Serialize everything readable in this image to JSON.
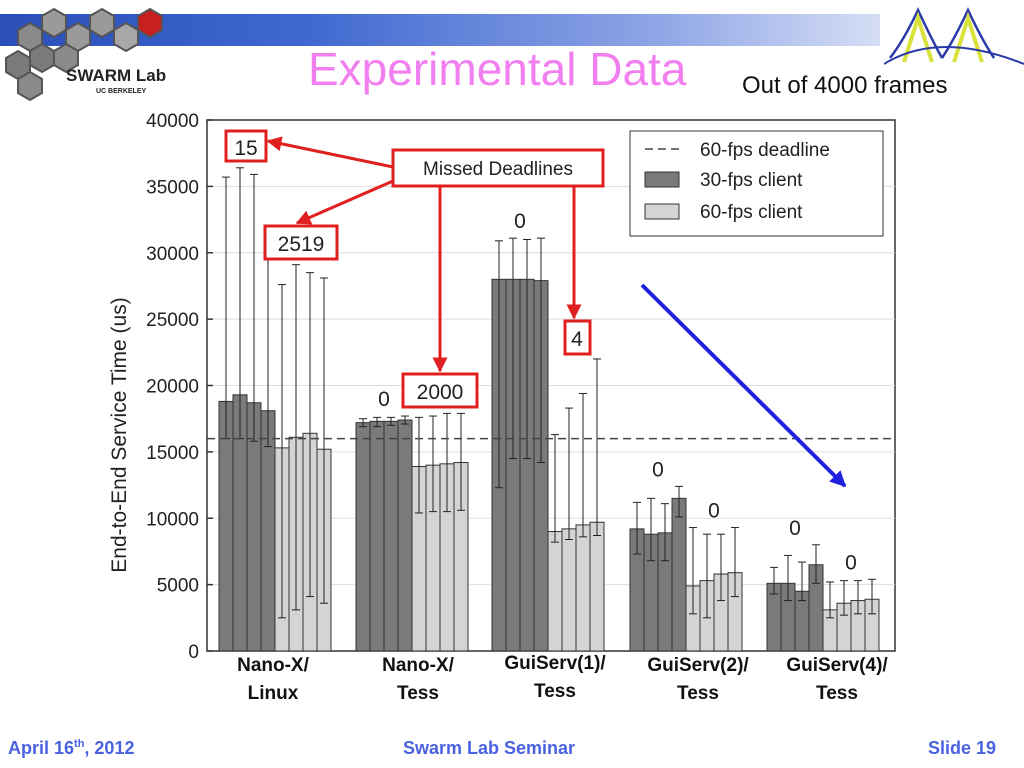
{
  "slide": {
    "title": "Experimental Data",
    "subtitle": "Out of 4000 frames",
    "logo_text": "SWARM Lab",
    "logo_subtext": "UC BERKELEY",
    "footer_date_main": "April 16",
    "footer_date_sup": "th",
    "footer_date_year": ", 2012",
    "footer_center": "Swarm Lab Seminar",
    "footer_right": "Slide 19"
  },
  "chart_data": {
    "type": "bar",
    "ylabel": "End-to-End Service Time (us)",
    "ylim": [
      0,
      40000
    ],
    "yticks": [
      0,
      5000,
      10000,
      15000,
      20000,
      25000,
      30000,
      35000,
      40000
    ],
    "deadline": 16000,
    "categories": [
      "Nano-X/\nLinux",
      "Nano-X/\nTess",
      "GuiServ(1)/\nTess",
      "GuiServ(2)/\nTess",
      "GuiServ(4)/\nTess"
    ],
    "legend": {
      "position": "top-right",
      "deadline_label": "60-fps deadline",
      "series_labels": [
        "30-fps client",
        "60-fps client"
      ]
    },
    "series": [
      {
        "name": "30-fps client",
        "color": "#7a7a7a",
        "values": [
          [
            18800,
            19300,
            18700,
            18100
          ],
          [
            17200,
            17300,
            17300,
            17400
          ],
          [
            28000,
            28000,
            28000,
            27900
          ],
          [
            9200,
            8800,
            8900,
            11500
          ],
          [
            5100,
            5100,
            4500,
            6500
          ]
        ],
        "lows": [
          [
            16000,
            16000,
            15800,
            15400
          ],
          [
            16900,
            16900,
            17000,
            17100
          ],
          [
            12300,
            14500,
            14500,
            14200
          ],
          [
            7300,
            6800,
            6800,
            10100
          ],
          [
            4300,
            3800,
            3800,
            5100
          ]
        ],
        "highs": [
          [
            35700,
            36400,
            35900,
            30000
          ],
          [
            17500,
            17600,
            17600,
            17700
          ],
          [
            30900,
            31100,
            31000,
            31100
          ],
          [
            11200,
            11500,
            11100,
            12400
          ],
          [
            6300,
            7200,
            6700,
            8000
          ]
        ],
        "missed": [
          "15",
          "0",
          "0",
          "0",
          "0"
        ]
      },
      {
        "name": "60-fps client",
        "color": "#d4d4d4",
        "values": [
          [
            15300,
            16100,
            16400,
            15200
          ],
          [
            13900,
            14000,
            14100,
            14200
          ],
          [
            9000,
            9200,
            9500,
            9700
          ],
          [
            4900,
            5300,
            5800,
            5900
          ],
          [
            3100,
            3600,
            3800,
            3900
          ]
        ],
        "lows": [
          [
            2500,
            3100,
            4100,
            3600
          ],
          [
            10400,
            10500,
            10500,
            10600
          ],
          [
            8200,
            8400,
            8600,
            8700
          ],
          [
            2800,
            2500,
            3800,
            4100
          ],
          [
            2500,
            2700,
            2800,
            2800
          ]
        ],
        "highs": [
          [
            27600,
            29100,
            28500,
            28100
          ],
          [
            17600,
            17700,
            17900,
            17900
          ],
          [
            16300,
            18300,
            19400,
            22000
          ],
          [
            9300,
            8800,
            8800,
            9300
          ],
          [
            5200,
            5300,
            5300,
            5400
          ]
        ],
        "missed": [
          "2519",
          "2000",
          "4",
          "0",
          "0"
        ]
      }
    ],
    "annotation": {
      "label": "Missed Deadlines",
      "boxed_values": [
        "15",
        "2519",
        "2000",
        "4"
      ]
    }
  }
}
